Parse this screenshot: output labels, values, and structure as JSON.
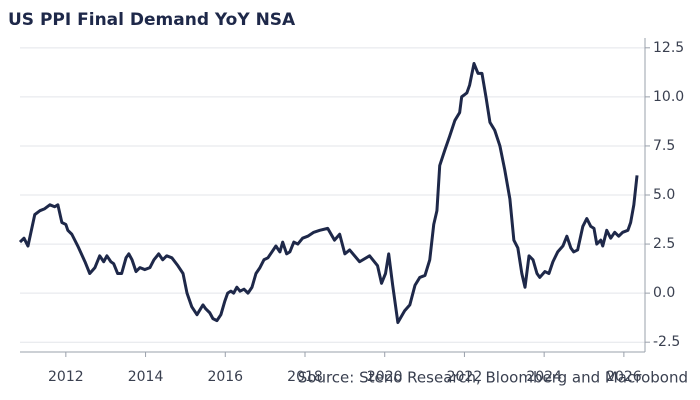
{
  "chart_data": {
    "type": "line",
    "title": "US PPI Final Demand YoY NSA",
    "source": "Source: Steno Research, Bloomberg and Macrobond",
    "x": [
      2010.85,
      2010.95,
      2011.05,
      2011.22,
      2011.35,
      2011.47,
      2011.6,
      2011.72,
      2011.8,
      2011.9,
      2012.0,
      2012.05,
      2012.15,
      2012.3,
      2012.48,
      2012.6,
      2012.73,
      2012.85,
      2012.95,
      2013.03,
      2013.13,
      2013.2,
      2013.3,
      2013.4,
      2013.51,
      2013.58,
      2013.66,
      2013.76,
      2013.86,
      2013.98,
      2014.11,
      2014.21,
      2014.33,
      2014.43,
      2014.53,
      2014.66,
      2014.81,
      2014.94,
      2015.04,
      2015.16,
      2015.29,
      2015.44,
      2015.51,
      2015.61,
      2015.69,
      2015.79,
      2015.89,
      2015.99,
      2016.06,
      2016.14,
      2016.21,
      2016.29,
      2016.37,
      2016.47,
      2016.57,
      2016.67,
      2016.77,
      2016.87,
      2016.97,
      2017.07,
      2017.17,
      2017.27,
      2017.37,
      2017.44,
      2017.54,
      2017.62,
      2017.72,
      2017.82,
      2017.94,
      2018.07,
      2018.22,
      2018.37,
      2018.57,
      2018.74,
      2018.87,
      2019.0,
      2019.12,
      2019.37,
      2019.62,
      2019.82,
      2019.92,
      2020.02,
      2020.1,
      2020.2,
      2020.33,
      2020.5,
      2020.63,
      2020.76,
      2020.88,
      2021.01,
      2021.13,
      2021.23,
      2021.31,
      2021.38,
      2021.51,
      2021.63,
      2021.76,
      2021.88,
      2021.93,
      2022.06,
      2022.13,
      2022.24,
      2022.34,
      2022.44,
      2022.54,
      2022.64,
      2022.76,
      2022.89,
      2023.01,
      2023.14,
      2023.24,
      2023.34,
      2023.44,
      2023.52,
      2023.62,
      2023.72,
      2023.82,
      2023.89,
      2024.02,
      2024.12,
      2024.22,
      2024.34,
      2024.47,
      2024.57,
      2024.67,
      2024.74,
      2024.84,
      2024.97,
      2025.07,
      2025.17,
      2025.25,
      2025.32,
      2025.42,
      2025.47,
      2025.57,
      2025.67,
      2025.77,
      2025.87,
      2025.97,
      2026.1,
      2026.17,
      2026.25,
      2026.33
    ],
    "series": [
      {
        "color": "#1e2849",
        "values": [
          2.6,
          2.8,
          2.4,
          4.0,
          4.2,
          4.3,
          4.5,
          4.4,
          4.5,
          3.6,
          3.5,
          3.2,
          3.0,
          2.4,
          1.6,
          1.0,
          1.3,
          1.9,
          1.6,
          1.9,
          1.6,
          1.5,
          1.0,
          1.0,
          1.8,
          2.0,
          1.7,
          1.1,
          1.3,
          1.2,
          1.3,
          1.7,
          2.0,
          1.7,
          1.9,
          1.8,
          1.4,
          1.0,
          0.0,
          -0.7,
          -1.1,
          -0.6,
          -0.8,
          -1.0,
          -1.3,
          -1.4,
          -1.1,
          -0.4,
          0.0,
          0.1,
          0.0,
          0.3,
          0.1,
          0.2,
          0.0,
          0.3,
          1.0,
          1.3,
          1.7,
          1.8,
          2.1,
          2.4,
          2.1,
          2.6,
          2.0,
          2.1,
          2.6,
          2.5,
          2.8,
          2.9,
          3.1,
          3.2,
          3.3,
          2.7,
          3.0,
          2.0,
          2.2,
          1.6,
          1.9,
          1.4,
          0.5,
          1.0,
          2.0,
          0.4,
          -1.5,
          -0.9,
          -0.6,
          0.4,
          0.8,
          0.9,
          1.7,
          3.5,
          4.2,
          6.5,
          7.3,
          8.0,
          8.8,
          9.2,
          10.0,
          10.2,
          10.6,
          11.7,
          11.2,
          11.2,
          10.0,
          8.7,
          8.3,
          7.5,
          6.3,
          4.8,
          2.7,
          2.3,
          1.0,
          0.3,
          1.9,
          1.7,
          1.0,
          0.8,
          1.1,
          1.0,
          1.6,
          2.1,
          2.4,
          2.9,
          2.3,
          2.1,
          2.2,
          3.4,
          3.8,
          3.4,
          3.3,
          2.5,
          2.7,
          2.4,
          3.2,
          2.8,
          3.1,
          2.9,
          3.1,
          3.2,
          3.6,
          4.5,
          6.0
        ]
      }
    ],
    "xlim": [
      2010.85,
      2026.53
    ],
    "xticks": [
      2012,
      2014,
      2016,
      2018,
      2020,
      2022,
      2024,
      2026
    ],
    "ylim": [
      -3,
      13
    ],
    "yticks": [
      12.5,
      {
        "value": 10,
        "label": "10.0"
      },
      7.5,
      {
        "value": 5,
        "label": "5.0"
      },
      2.5,
      {
        "value": 0,
        "label": "0.0"
      },
      -2.5
    ],
    "grid": true
  }
}
